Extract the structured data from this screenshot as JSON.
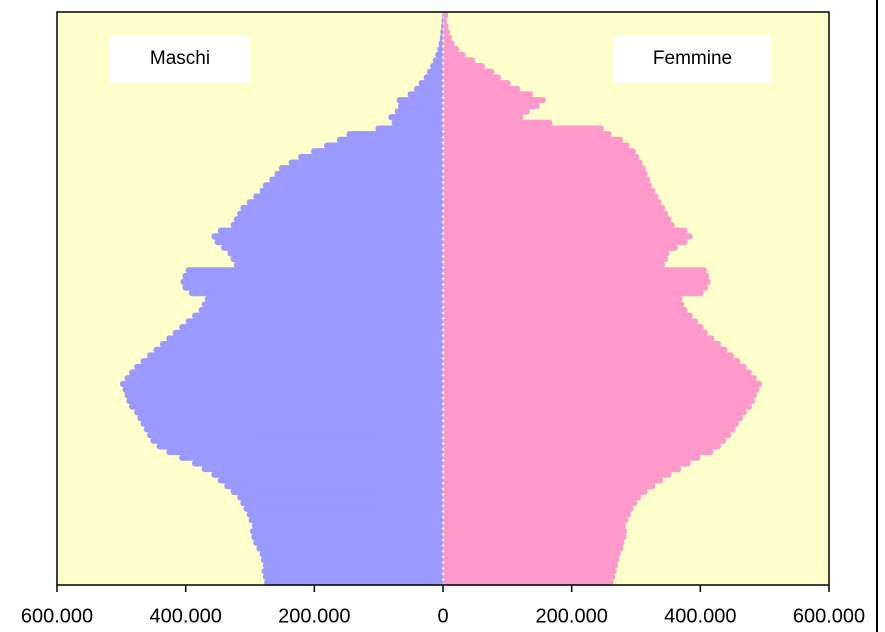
{
  "chart_data": {
    "type": "pyramid",
    "series": [
      {
        "name": "Maschi",
        "color": "#9999ff",
        "values": [
          -278000,
          -280000,
          -282000,
          -280000,
          -283000,
          -285000,
          -290000,
          -295000,
          -298000,
          -300000,
          -297000,
          -302000,
          -305000,
          -310000,
          -315000,
          -320000,
          -330000,
          -340000,
          -350000,
          -360000,
          -375000,
          -390000,
          -410000,
          -430000,
          -445000,
          -455000,
          -460000,
          -465000,
          -470000,
          -475000,
          -480000,
          -488000,
          -492000,
          -495000,
          -498000,
          -502000,
          -495000,
          -488000,
          -480000,
          -470000,
          -460000,
          -450000,
          -440000,
          -430000,
          -420000,
          -410000,
          -400000,
          -390000,
          -380000,
          -375000,
          -370000,
          -395000,
          -405000,
          -408000,
          -405000,
          -400000,
          -325000,
          -330000,
          -335000,
          -345000,
          -355000,
          -360000,
          -350000,
          -330000,
          -325000,
          -320000,
          -315000,
          -305000,
          -295000,
          -285000,
          -280000,
          -270000,
          -262000,
          -255000,
          -240000,
          -225000,
          -205000,
          -185000,
          -165000,
          -150000,
          -105000,
          -80000,
          -85000,
          -75000,
          -70000,
          -72000,
          -55000,
          -45000,
          -38000,
          -30000,
          -25000,
          -20000,
          -16000,
          -12000,
          -9000,
          -7000,
          -5000,
          -4000,
          -3000,
          -2000,
          -1000
        ]
      },
      {
        "name": "Femmine",
        "color": "#ff99cc",
        "values": [
          265000,
          268000,
          270000,
          272000,
          274000,
          276000,
          280000,
          282000,
          285000,
          286000,
          284000,
          288000,
          292000,
          296000,
          302000,
          308000,
          318000,
          330000,
          342000,
          355000,
          370000,
          385000,
          400000,
          420000,
          432000,
          440000,
          448000,
          455000,
          460000,
          466000,
          472000,
          480000,
          485000,
          488000,
          492000,
          496000,
          488000,
          480000,
          472000,
          462000,
          452000,
          442000,
          432000,
          422000,
          412000,
          405000,
          396000,
          388000,
          380000,
          375000,
          372000,
          405000,
          412000,
          416000,
          414000,
          410000,
          345000,
          350000,
          352000,
          365000,
          380000,
          388000,
          380000,
          360000,
          355000,
          350000,
          345000,
          340000,
          335000,
          330000,
          325000,
          322000,
          318000,
          315000,
          310000,
          305000,
          300000,
          290000,
          280000,
          262000,
          250000,
          170000,
          125000,
          135000,
          150000,
          160000,
          140000,
          120000,
          105000,
          90000,
          80000,
          65000,
          50000,
          35000,
          25000,
          18000,
          14000,
          11000,
          9000,
          6000,
          8000
        ]
      }
    ],
    "xlim": [
      -600000,
      600000
    ],
    "xticks": [
      {
        "value": -600000,
        "label": "600.000"
      },
      {
        "value": -400000,
        "label": "400.000"
      },
      {
        "value": -200000,
        "label": "200.000"
      },
      0,
      {
        "value": 200000,
        "label": "200.000"
      },
      {
        "value": 400000,
        "label": "400.000"
      },
      {
        "value": 600000,
        "label": "600.000"
      }
    ],
    "background": "#ffffcc"
  }
}
